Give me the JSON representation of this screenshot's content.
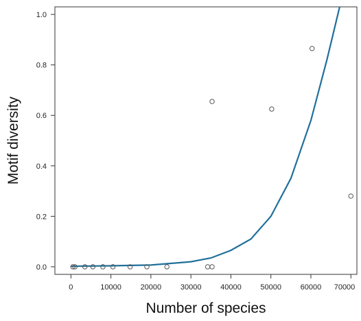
{
  "chart_data": {
    "type": "scatter",
    "title": "",
    "xlabel": "Number of species",
    "ylabel": "Motif diversity",
    "xlim": [
      -4000,
      71500
    ],
    "ylim": [
      -0.03,
      1.03
    ],
    "xticks": [
      0,
      10000,
      20000,
      30000,
      40000,
      50000,
      60000,
      70000
    ],
    "xtick_labels": [
      "0",
      "10000",
      "20000",
      "30000",
      "40000",
      "50000",
      "60000",
      "70000"
    ],
    "yticks": [
      0.0,
      0.2,
      0.4,
      0.6,
      0.8,
      1.0
    ],
    "ytick_labels": [
      "0.0",
      "0.2",
      "0.4",
      "0.6",
      "0.8",
      "1.0"
    ],
    "grid": false,
    "legend": "none",
    "points": [
      {
        "x": 500,
        "y": 0.0
      },
      {
        "x": 1000,
        "y": 0.0
      },
      {
        "x": 3500,
        "y": 0.0
      },
      {
        "x": 5500,
        "y": 0.0
      },
      {
        "x": 8000,
        "y": 0.0
      },
      {
        "x": 10500,
        "y": 0.0
      },
      {
        "x": 14800,
        "y": 0.0
      },
      {
        "x": 19000,
        "y": 0.0
      },
      {
        "x": 24000,
        "y": 0.0
      },
      {
        "x": 34200,
        "y": 0.0
      },
      {
        "x": 35300,
        "y": 0.0
      },
      {
        "x": 35300,
        "y": 0.655
      },
      {
        "x": 50200,
        "y": 0.625
      },
      {
        "x": 60300,
        "y": 0.865
      },
      {
        "x": 70000,
        "y": 0.28
      }
    ],
    "fit_curve": {
      "model": "exponential",
      "points": [
        {
          "x": 0,
          "y": 0.002
        },
        {
          "x": 10000,
          "y": 0.004
        },
        {
          "x": 20000,
          "y": 0.007
        },
        {
          "x": 30000,
          "y": 0.02
        },
        {
          "x": 35000,
          "y": 0.035
        },
        {
          "x": 40000,
          "y": 0.065
        },
        {
          "x": 45000,
          "y": 0.11
        },
        {
          "x": 50000,
          "y": 0.2
        },
        {
          "x": 55000,
          "y": 0.35
        },
        {
          "x": 60000,
          "y": 0.58
        },
        {
          "x": 64000,
          "y": 0.82
        },
        {
          "x": 67200,
          "y": 1.03
        }
      ]
    },
    "colors": {
      "points": "#555555",
      "curve": "#1f6f9a",
      "axis": "#333333"
    }
  }
}
